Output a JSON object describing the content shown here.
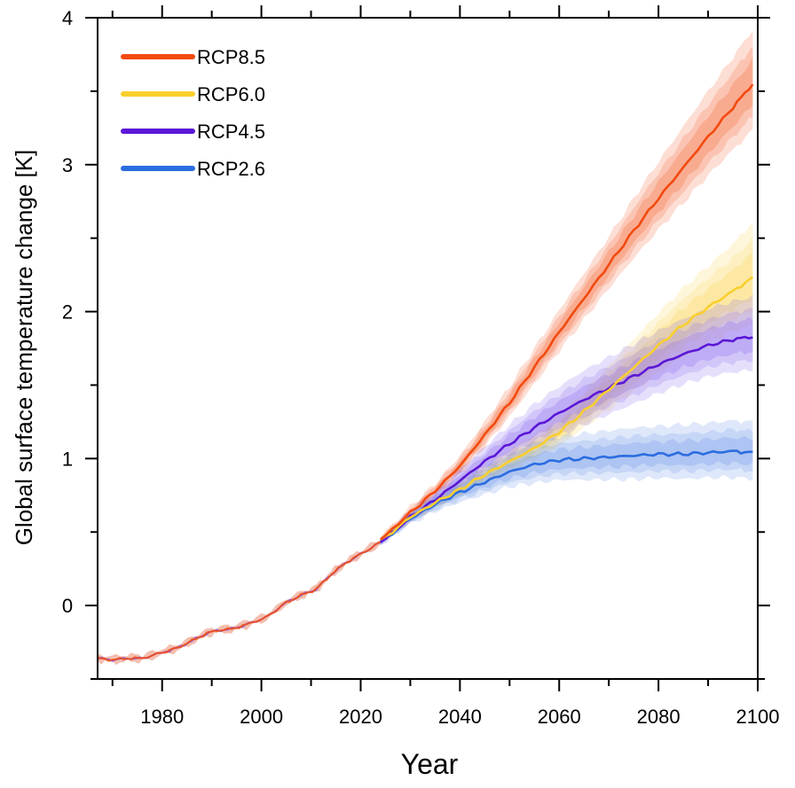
{
  "chart_data": {
    "type": "line",
    "xlabel": "Year",
    "ylabel": "Global surface temperature change [K]",
    "xlim": [
      1967,
      2100
    ],
    "ylim": [
      -0.5,
      4
    ],
    "x_ticks": [
      "1980",
      "2000",
      "2020",
      "2040",
      "2060",
      "2080",
      "2100"
    ],
    "y_ticks": [
      "0",
      "1",
      "2",
      "3",
      "4"
    ],
    "legend_position": "top-left",
    "historical": {
      "x": [
        1967,
        1970,
        1973,
        1976,
        1980,
        1983,
        1986,
        1989,
        1991,
        1994,
        1997,
        2001,
        2005,
        2008,
        2011,
        2014,
        2017,
        2020,
        2024
      ],
      "y": [
        -0.36,
        -0.37,
        -0.36,
        -0.36,
        -0.32,
        -0.29,
        -0.24,
        -0.19,
        -0.17,
        -0.16,
        -0.13,
        -0.08,
        0.02,
        0.07,
        0.11,
        0.21,
        0.29,
        0.35,
        0.43
      ]
    },
    "series": [
      {
        "name": "RCP8.5",
        "color": "#f24a0f",
        "band_color": "#f46a3a",
        "x": [
          2024,
          2030,
          2035,
          2040,
          2045,
          2050,
          2055,
          2060,
          2065,
          2070,
          2075,
          2080,
          2085,
          2090,
          2095,
          2099
        ],
        "y": [
          0.45,
          0.63,
          0.78,
          0.95,
          1.16,
          1.38,
          1.62,
          1.86,
          2.09,
          2.32,
          2.55,
          2.77,
          2.98,
          3.19,
          3.39,
          3.55
        ],
        "spread": [
          0.02,
          0.04,
          0.05,
          0.07,
          0.09,
          0.11,
          0.13,
          0.15,
          0.17,
          0.19,
          0.22,
          0.25,
          0.28,
          0.31,
          0.34,
          0.37
        ]
      },
      {
        "name": "RCP6.0",
        "color": "#f9cf2e",
        "band_color": "#fad65a",
        "x": [
          2024,
          2030,
          2035,
          2040,
          2045,
          2050,
          2055,
          2060,
          2065,
          2070,
          2075,
          2080,
          2085,
          2090,
          2095,
          2099
        ],
        "y": [
          0.44,
          0.6,
          0.7,
          0.79,
          0.89,
          0.98,
          1.07,
          1.18,
          1.32,
          1.47,
          1.62,
          1.77,
          1.91,
          2.03,
          2.14,
          2.23
        ],
        "spread": [
          0.02,
          0.03,
          0.04,
          0.05,
          0.06,
          0.08,
          0.09,
          0.11,
          0.13,
          0.16,
          0.19,
          0.22,
          0.25,
          0.28,
          0.32,
          0.38
        ]
      },
      {
        "name": "RCP4.5",
        "color": "#5b17d6",
        "band_color": "#8d6cf0",
        "x": [
          2024,
          2030,
          2035,
          2040,
          2045,
          2050,
          2055,
          2060,
          2065,
          2070,
          2075,
          2080,
          2085,
          2090,
          2095,
          2099
        ],
        "y": [
          0.43,
          0.6,
          0.72,
          0.85,
          0.98,
          1.1,
          1.21,
          1.31,
          1.4,
          1.48,
          1.56,
          1.64,
          1.71,
          1.77,
          1.81,
          1.83
        ],
        "spread": [
          0.02,
          0.04,
          0.06,
          0.08,
          0.1,
          0.13,
          0.16,
          0.18,
          0.2,
          0.21,
          0.22,
          0.23,
          0.24,
          0.25,
          0.26,
          0.27
        ]
      },
      {
        "name": "RCP2.6",
        "color": "#2b6de0",
        "band_color": "#6f97ea",
        "x": [
          2024,
          2030,
          2035,
          2040,
          2045,
          2050,
          2055,
          2060,
          2065,
          2070,
          2075,
          2080,
          2085,
          2090,
          2095,
          2099
        ],
        "y": [
          0.43,
          0.59,
          0.69,
          0.77,
          0.84,
          0.91,
          0.96,
          0.99,
          1.0,
          1.01,
          1.02,
          1.03,
          1.03,
          1.04,
          1.05,
          1.04
        ],
        "spread": [
          0.02,
          0.04,
          0.06,
          0.08,
          0.1,
          0.12,
          0.15,
          0.16,
          0.17,
          0.18,
          0.19,
          0.19,
          0.2,
          0.2,
          0.21,
          0.21
        ]
      }
    ]
  }
}
